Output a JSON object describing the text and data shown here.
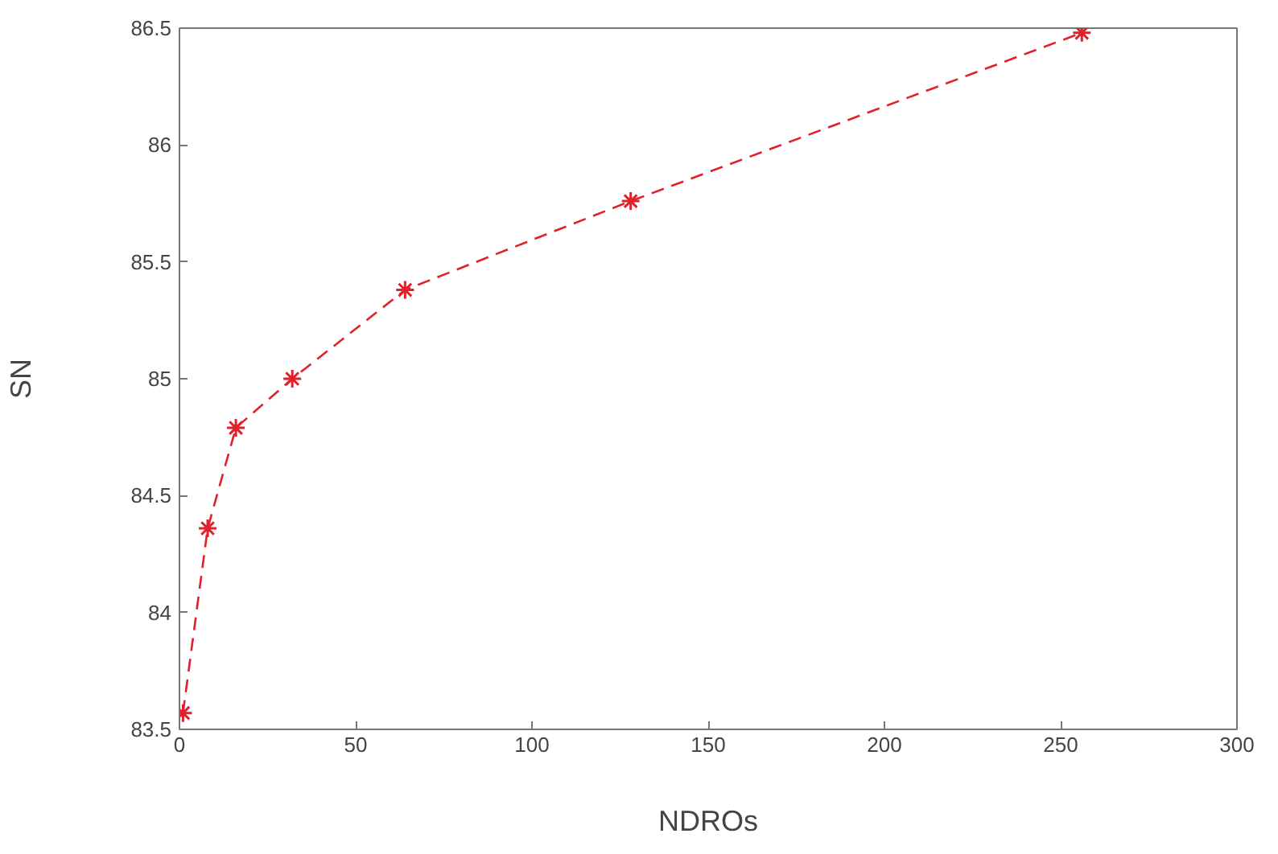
{
  "chart_data": {
    "type": "line",
    "xlabel": "NDROs",
    "ylabel": "SN",
    "x": [
      1,
      8,
      16,
      32,
      64,
      128,
      256
    ],
    "series": [
      {
        "color": "#e0202a",
        "values": [
          83.57,
          84.36,
          84.79,
          85.0,
          85.38,
          85.76,
          86.48
        ]
      }
    ],
    "xlim": [
      0,
      300
    ],
    "xticks": [
      0,
      50,
      100,
      150,
      200,
      250,
      300
    ],
    "ylim": [
      83.5,
      86.5
    ],
    "yticks": [
      83.5,
      84,
      84.5,
      85,
      85.5,
      86,
      86.5
    ],
    "marker": "cross",
    "line_style": "dashed"
  }
}
